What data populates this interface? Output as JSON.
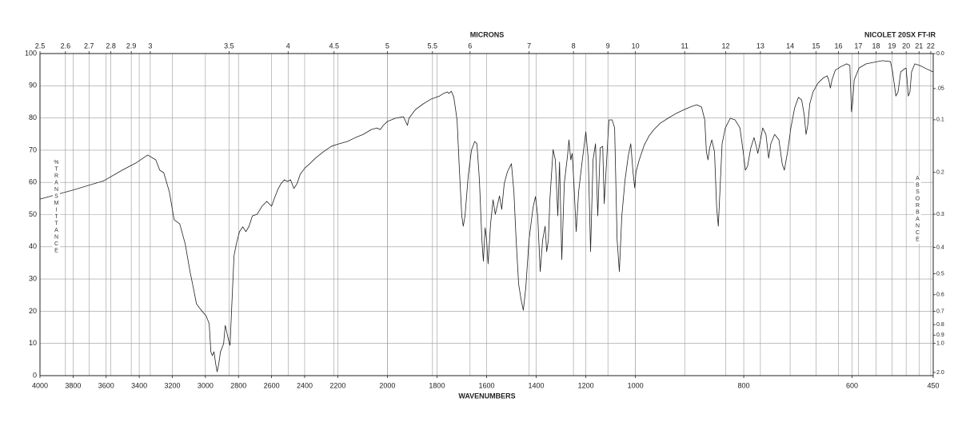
{
  "chart_data": {
    "type": "line",
    "title": "NICOLET 20SX FT-IR",
    "x2label": "MICRONS",
    "xlabel": "WAVENUMBERS",
    "ylabel": "%TRANSMITTANCE",
    "y2label": "ABSORBANCE",
    "color": "#222222",
    "grid": true,
    "xlim": [
      4000,
      450
    ],
    "xbreaks": [
      2200,
      1000
    ],
    "xticks": [
      4000,
      3800,
      3600,
      3400,
      3200,
      3000,
      2800,
      2600,
      2400,
      2200,
      2000,
      1800,
      1600,
      1400,
      1200,
      1000,
      800,
      600,
      450
    ],
    "x2ticks": [
      2.5,
      2.6,
      2.7,
      2.8,
      2.9,
      3,
      3.5,
      4,
      4.5,
      5,
      5.5,
      6,
      7,
      8,
      9,
      10,
      11,
      12,
      13,
      14,
      15,
      16,
      17,
      18,
      19,
      20,
      21,
      22
    ],
    "ylim": [
      0,
      100
    ],
    "yticks": [
      0,
      10,
      20,
      30,
      40,
      50,
      60,
      70,
      80,
      90,
      100
    ],
    "y2ticks": [
      {
        "value": 0,
        "label": "0.0"
      },
      {
        "value": 0.05,
        "label": ".05"
      },
      0.1,
      0.2,
      0.3,
      0.4,
      0.5,
      0.6,
      0.7,
      0.8,
      0.9,
      {
        "value": 1,
        "label": "1.0"
      },
      {
        "value": 2,
        "label": "2.0"
      }
    ],
    "x": [
      4000,
      3802,
      3614,
      3503,
      3421,
      3349,
      3300,
      3276,
      3252,
      3218,
      3189,
      3155,
      3122,
      3093,
      3073,
      3054,
      3025,
      2996,
      2977,
      2967,
      2958,
      2948,
      2938,
      2929,
      2919,
      2909,
      2890,
      2880,
      2871,
      2861,
      2851,
      2842,
      2827,
      2813,
      2794,
      2774,
      2755,
      2736,
      2716,
      2687,
      2658,
      2629,
      2600,
      2581,
      2562,
      2543,
      2523,
      2504,
      2485,
      2465,
      2446,
      2427,
      2398,
      2369,
      2335,
      2287,
      2239,
      2194,
      2161,
      2129,
      2097,
      2065,
      2042,
      2029,
      2016,
      2000,
      1968,
      1935,
      1919,
      1913,
      1887,
      1855,
      1823,
      1790,
      1774,
      1758,
      1752,
      1742,
      1732,
      1719,
      1710,
      1700,
      1694,
      1687,
      1674,
      1661,
      1648,
      1639,
      1629,
      1619,
      1613,
      1606,
      1600,
      1594,
      1584,
      1574,
      1565,
      1555,
      1548,
      1539,
      1529,
      1516,
      1500,
      1490,
      1481,
      1471,
      1461,
      1452,
      1442,
      1429,
      1413,
      1403,
      1394,
      1384,
      1374,
      1364,
      1358,
      1351,
      1345,
      1332,
      1323,
      1313,
      1306,
      1297,
      1287,
      1274,
      1268,
      1261,
      1255,
      1248,
      1239,
      1229,
      1216,
      1200,
      1190,
      1181,
      1171,
      1161,
      1152,
      1142,
      1132,
      1126,
      1116,
      1107,
      1094,
      1084,
      1074,
      1065,
      1055,
      1042,
      1029,
      1019,
      1010,
      1003,
      999,
      993,
      984,
      975,
      966,
      954,
      940,
      925,
      910,
      896,
      887,
      878,
      872,
      869,
      866,
      863,
      859,
      854,
      850,
      847,
      844,
      840,
      834,
      825,
      816,
      807,
      801,
      797,
      793,
      787,
      781,
      778,
      774,
      769,
      765,
      759,
      754,
      750,
      743,
      735,
      729,
      725,
      719,
      713,
      706,
      699,
      693,
      688,
      685,
      682,
      678,
      672,
      663,
      654,
      646,
      643,
      640,
      637,
      631,
      622,
      610,
      604,
      601,
      599,
      596,
      587,
      574,
      559,
      544,
      529,
      525,
      519,
      515,
      510,
      505,
      500,
      496,
      493,
      490,
      484,
      475,
      463,
      450
    ],
    "values": [
      54.8,
      57.6,
      60.5,
      63.8,
      66.0,
      68.5,
      67.0,
      63.8,
      63.0,
      57.1,
      48.4,
      47.1,
      40.9,
      32.3,
      27.3,
      22.3,
      20.3,
      18.6,
      16.1,
      7.4,
      6.2,
      7.4,
      3.7,
      1.2,
      3.7,
      7.4,
      9.9,
      15.6,
      13.6,
      11.2,
      9.4,
      19.9,
      37.2,
      40.9,
      44.7,
      46.2,
      44.7,
      46.4,
      49.6,
      50.1,
      52.6,
      54.1,
      52.6,
      55.3,
      57.8,
      59.6,
      60.8,
      60.3,
      60.8,
      58.1,
      59.6,
      62.5,
      64.5,
      65.8,
      67.5,
      69.5,
      71.2,
      72.0,
      72.7,
      73.9,
      74.9,
      76.4,
      76.9,
      76.4,
      77.7,
      78.9,
      79.9,
      80.4,
      77.7,
      79.9,
      82.6,
      84.4,
      85.9,
      86.8,
      87.6,
      88.1,
      87.6,
      88.3,
      86.4,
      79.4,
      64.5,
      49.6,
      46.4,
      49.6,
      62.0,
      70.0,
      72.7,
      72.0,
      60.8,
      42.2,
      35.5,
      45.9,
      42.2,
      34.7,
      47.1,
      54.6,
      50.1,
      53.4,
      55.8,
      51.6,
      59.6,
      63.3,
      65.8,
      57.1,
      42.2,
      28.5,
      23.6,
      20.3,
      27.3,
      42.2,
      52.1,
      55.6,
      49.6,
      32.3,
      42.2,
      46.4,
      38.5,
      42.2,
      54.6,
      70.2,
      67.0,
      49.6,
      66.3,
      36.0,
      59.6,
      68.2,
      73.2,
      67.0,
      69.0,
      59.6,
      44.7,
      57.1,
      65.8,
      75.7,
      67.0,
      38.5,
      67.0,
      72.0,
      49.6,
      70.7,
      71.2,
      53.4,
      67.0,
      79.4,
      79.4,
      76.9,
      42.2,
      32.3,
      49.6,
      60.8,
      68.2,
      72.0,
      63.3,
      58.3,
      63.3,
      67.0,
      71.5,
      74.4,
      76.4,
      78.4,
      79.9,
      81.4,
      82.6,
      83.6,
      84.1,
      83.4,
      79.4,
      69.5,
      67.0,
      70.7,
      73.2,
      69.5,
      52.1,
      46.4,
      57.1,
      72.0,
      76.9,
      79.9,
      79.4,
      76.9,
      69.5,
      63.8,
      65.0,
      70.7,
      73.9,
      72.0,
      69.0,
      73.2,
      76.9,
      74.9,
      67.5,
      72.0,
      74.9,
      73.2,
      65.8,
      63.8,
      69.5,
      76.9,
      83.1,
      86.4,
      85.6,
      80.6,
      74.9,
      77.4,
      84.4,
      88.1,
      90.8,
      92.3,
      93.1,
      91.8,
      89.3,
      91.8,
      94.8,
      95.8,
      96.8,
      96.3,
      81.9,
      84.4,
      91.8,
      95.5,
      96.8,
      97.3,
      97.8,
      97.5,
      94.3,
      86.8,
      88.1,
      94.3,
      95.0,
      95.5,
      86.8,
      88.1,
      94.3,
      96.8,
      96.3,
      95.3,
      94.3
    ]
  }
}
